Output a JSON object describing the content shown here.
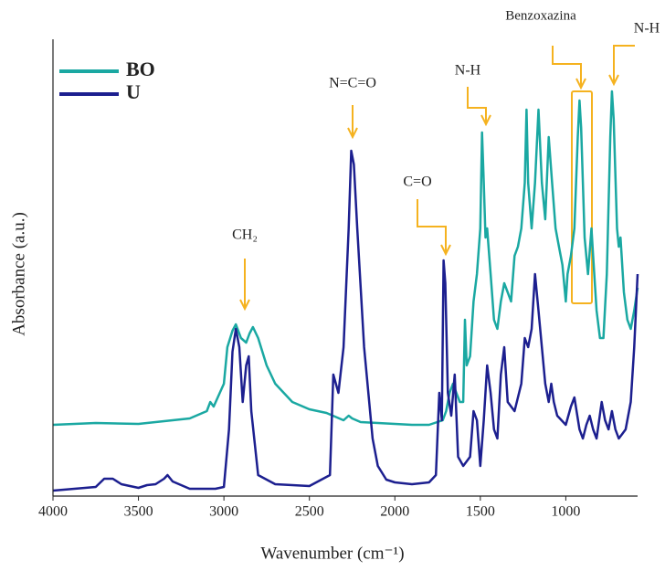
{
  "chart_data": {
    "type": "line",
    "x_label": "Wavenumber (cm⁻¹)",
    "y_label": "Absorbance (a.u.)",
    "xlim": [
      4000,
      580
    ],
    "xticks": [
      4000,
      3500,
      3000,
      2500,
      2000,
      1500,
      1000
    ],
    "ylim": [
      0,
      500
    ],
    "legend": "upper left",
    "annotations": [
      "CH₂",
      "N=C=O",
      "C=O",
      "N-H",
      "Benzoxazina",
      "N-H"
    ],
    "series": [
      {
        "name": "BO",
        "color": "#1aa8a2",
        "x": [
          4000,
          3750,
          3500,
          3300,
          3200,
          3100,
          3080,
          3060,
          3000,
          2980,
          2950,
          2930,
          2900,
          2870,
          2850,
          2830,
          2800,
          2750,
          2700,
          2600,
          2500,
          2400,
          2300,
          2270,
          2250,
          2200,
          2100,
          2000,
          1900,
          1800,
          1720,
          1700,
          1680,
          1660,
          1640,
          1620,
          1600,
          1590,
          1580,
          1560,
          1540,
          1520,
          1500,
          1490,
          1480,
          1470,
          1460,
          1440,
          1420,
          1400,
          1380,
          1360,
          1340,
          1320,
          1300,
          1280,
          1260,
          1240,
          1230,
          1220,
          1200,
          1180,
          1160,
          1140,
          1120,
          1100,
          1080,
          1060,
          1040,
          1020,
          1000,
          990,
          970,
          950,
          930,
          920,
          910,
          890,
          870,
          850,
          840,
          820,
          800,
          780,
          760,
          740,
          730,
          720,
          700,
          690,
          680,
          660,
          640,
          620,
          600,
          580
        ],
        "values": [
          78,
          80,
          79,
          83,
          85,
          93,
          103,
          98,
          123,
          163,
          181,
          188,
          173,
          168,
          178,
          185,
          173,
          143,
          123,
          103,
          95,
          91,
          83,
          88,
          85,
          81,
          80,
          79,
          78,
          78,
          83,
          93,
          113,
          123,
          113,
          103,
          103,
          193,
          143,
          153,
          213,
          243,
          293,
          398,
          343,
          283,
          293,
          243,
          193,
          183,
          213,
          233,
          223,
          213,
          263,
          273,
          293,
          343,
          423,
          343,
          293,
          343,
          423,
          343,
          303,
          393,
          343,
          293,
          273,
          253,
          213,
          243,
          263,
          293,
          393,
          433,
          403,
          283,
          243,
          293,
          263,
          203,
          173,
          173,
          243,
          393,
          443,
          413,
          293,
          273,
          283,
          223,
          193,
          183,
          203,
          228
        ]
      },
      {
        "name": "U",
        "color": "#1c1f8f",
        "x": [
          4000,
          3750,
          3700,
          3650,
          3600,
          3500,
          3450,
          3400,
          3350,
          3330,
          3300,
          3200,
          3050,
          3000,
          2970,
          2950,
          2930,
          2910,
          2890,
          2870,
          2855,
          2840,
          2800,
          2700,
          2500,
          2380,
          2360,
          2345,
          2330,
          2300,
          2270,
          2255,
          2240,
          2220,
          2180,
          2130,
          2100,
          2050,
          2000,
          1900,
          1800,
          1760,
          1740,
          1725,
          1715,
          1705,
          1690,
          1670,
          1650,
          1630,
          1600,
          1560,
          1540,
          1520,
          1500,
          1480,
          1460,
          1440,
          1420,
          1400,
          1380,
          1360,
          1340,
          1300,
          1260,
          1240,
          1220,
          1200,
          1180,
          1160,
          1140,
          1120,
          1100,
          1085,
          1070,
          1050,
          1000,
          970,
          950,
          920,
          900,
          880,
          860,
          840,
          820,
          790,
          770,
          750,
          730,
          710,
          690,
          670,
          650,
          620,
          600,
          580
        ],
        "values": [
          6,
          10,
          19,
          19,
          13,
          9,
          12,
          13,
          19,
          23,
          16,
          8,
          8,
          10,
          73,
          158,
          183,
          163,
          103,
          143,
          153,
          93,
          23,
          13,
          11,
          23,
          133,
          123,
          113,
          163,
          293,
          378,
          363,
          293,
          163,
          63,
          33,
          18,
          15,
          13,
          15,
          23,
          113,
          83,
          258,
          233,
          113,
          88,
          133,
          43,
          33,
          43,
          93,
          83,
          33,
          83,
          143,
          113,
          73,
          63,
          133,
          163,
          103,
          93,
          123,
          173,
          163,
          183,
          243,
          203,
          163,
          123,
          103,
          123,
          103,
          88,
          78,
          98,
          108,
          73,
          63,
          78,
          88,
          73,
          63,
          103,
          83,
          73,
          93,
          73,
          63,
          68,
          73,
          103,
          163,
          243
        ]
      }
    ]
  }
}
